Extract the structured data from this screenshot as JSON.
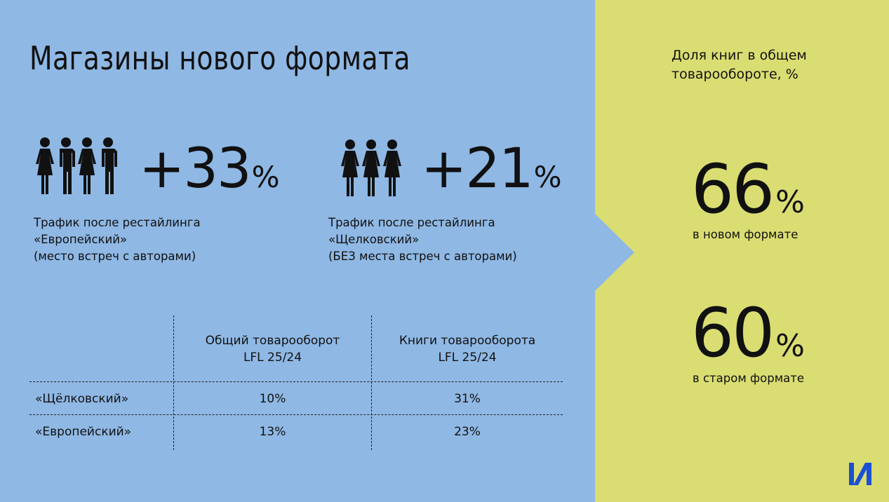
{
  "title": "Магазины нового формата",
  "stats": [
    {
      "value": "+33",
      "unit": "%",
      "caption": [
        "Трафик после рестайлинга",
        "«Европейский»",
        "(место встреч с авторами)"
      ],
      "icon": "four-people-icon"
    },
    {
      "value": "+21",
      "unit": "%",
      "caption": [
        "Трафик после рестайлинга",
        "«Щелковский»",
        "(БЕЗ места встреч с авторами)"
      ],
      "icon": "three-women-icon"
    }
  ],
  "table": {
    "headers": [
      [
        "Общий товарооборот",
        "LFL 25/24"
      ],
      [
        "Книги товарооборота",
        "LFL 25/24"
      ]
    ],
    "rows": [
      {
        "name": "«Щёлковский»",
        "values": [
          "10%",
          "31%"
        ]
      },
      {
        "name": "«Европейский»",
        "values": [
          "13%",
          "23%"
        ]
      }
    ]
  },
  "share": {
    "title": [
      "Доля книг в общем",
      "товарообороте, %"
    ],
    "items": [
      {
        "value": "66",
        "unit": "%",
        "label": "в новом формате"
      },
      {
        "value": "60",
        "unit": "%",
        "label": "в старом формате"
      }
    ]
  },
  "colors": {
    "left_bg": "#8fb8e4",
    "right_bg": "#dadd72",
    "logo": "#1a4fd6"
  }
}
